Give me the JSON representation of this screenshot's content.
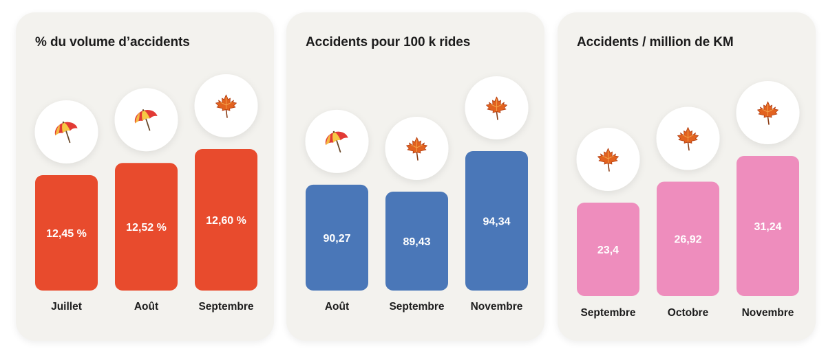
{
  "chart_data": [
    {
      "type": "bar",
      "title": "% du volume d’accidents",
      "categories": [
        "Juillet",
        "Août",
        "Septembre"
      ],
      "values": [
        12.45,
        12.52,
        12.6
      ],
      "value_labels": [
        "12,45 %",
        "12,52 %",
        "12,60 %"
      ],
      "icons": [
        "umbrella-icon",
        "umbrella-icon",
        "maple-leaf-icon"
      ],
      "color": "#e84b2d"
    },
    {
      "type": "bar",
      "title": "Accidents pour 100 k rides",
      "categories": [
        "Août",
        "Septembre",
        "Novembre"
      ],
      "values": [
        90.27,
        89.43,
        94.34
      ],
      "value_labels": [
        "90,27",
        "89,43",
        "94,34"
      ],
      "icons": [
        "umbrella-icon",
        "maple-leaf-icon",
        "maple-leaf-icon"
      ],
      "color": "#4a77b8"
    },
    {
      "type": "bar",
      "title": "Accidents / million de KM",
      "categories": [
        "Septembre",
        "Octobre",
        "Novembre"
      ],
      "values": [
        23.4,
        26.92,
        31.24
      ],
      "value_labels": [
        "23,4",
        "26,92",
        "31,24"
      ],
      "icons": [
        "maple-leaf-icon",
        "maple-leaf-icon",
        "maple-leaf-icon"
      ],
      "color": "#ee8dbd"
    }
  ]
}
